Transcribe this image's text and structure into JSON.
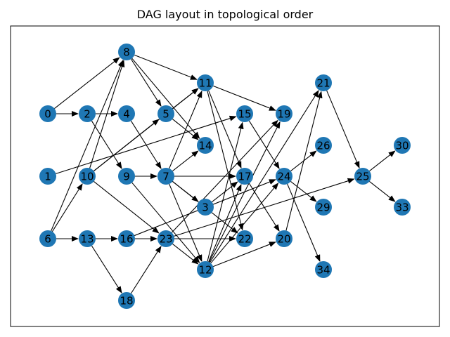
{
  "title": "DAG layout in topological order",
  "style": {
    "node_color": "#1f77b4",
    "edge_color": "#000000",
    "frame_color": "#000000"
  },
  "nodes": [
    "0",
    "1",
    "2",
    "3",
    "4",
    "5",
    "6",
    "7",
    "8",
    "9",
    "10",
    "11",
    "12",
    "13",
    "14",
    "15",
    "16",
    "17",
    "18",
    "19",
    "20",
    "21",
    "22",
    "23",
    "24",
    "25",
    "26",
    "29",
    "30",
    "33",
    "34"
  ],
  "edges": [
    [
      "0",
      "2"
    ],
    [
      "0",
      "8"
    ],
    [
      "1",
      "15"
    ],
    [
      "2",
      "4"
    ],
    [
      "2",
      "9"
    ],
    [
      "4",
      "7"
    ],
    [
      "5",
      "11"
    ],
    [
      "5",
      "14"
    ],
    [
      "6",
      "8"
    ],
    [
      "6",
      "10"
    ],
    [
      "6",
      "13"
    ],
    [
      "7",
      "11"
    ],
    [
      "7",
      "14"
    ],
    [
      "7",
      "17"
    ],
    [
      "7",
      "3"
    ],
    [
      "7",
      "12"
    ],
    [
      "7",
      "22"
    ],
    [
      "8",
      "5"
    ],
    [
      "8",
      "11"
    ],
    [
      "8",
      "14"
    ],
    [
      "9",
      "7"
    ],
    [
      "9",
      "12"
    ],
    [
      "10",
      "5"
    ],
    [
      "10",
      "8"
    ],
    [
      "10",
      "11"
    ],
    [
      "10",
      "23"
    ],
    [
      "11",
      "19"
    ],
    [
      "11",
      "17"
    ],
    [
      "11",
      "22"
    ],
    [
      "12",
      "15"
    ],
    [
      "12",
      "17"
    ],
    [
      "12",
      "19"
    ],
    [
      "12",
      "21"
    ],
    [
      "12",
      "24"
    ],
    [
      "12",
      "20"
    ],
    [
      "13",
      "16"
    ],
    [
      "13",
      "18"
    ],
    [
      "15",
      "24"
    ],
    [
      "16",
      "23"
    ],
    [
      "16",
      "24"
    ],
    [
      "17",
      "20"
    ],
    [
      "18",
      "23"
    ],
    [
      "21",
      "25"
    ],
    [
      "23",
      "25"
    ],
    [
      "23",
      "22"
    ],
    [
      "23",
      "19"
    ],
    [
      "23",
      "12"
    ],
    [
      "24",
      "26"
    ],
    [
      "24",
      "29"
    ],
    [
      "24",
      "34"
    ],
    [
      "25",
      "30"
    ],
    [
      "25",
      "33"
    ],
    [
      "3",
      "17"
    ],
    [
      "20",
      "21"
    ]
  ]
}
